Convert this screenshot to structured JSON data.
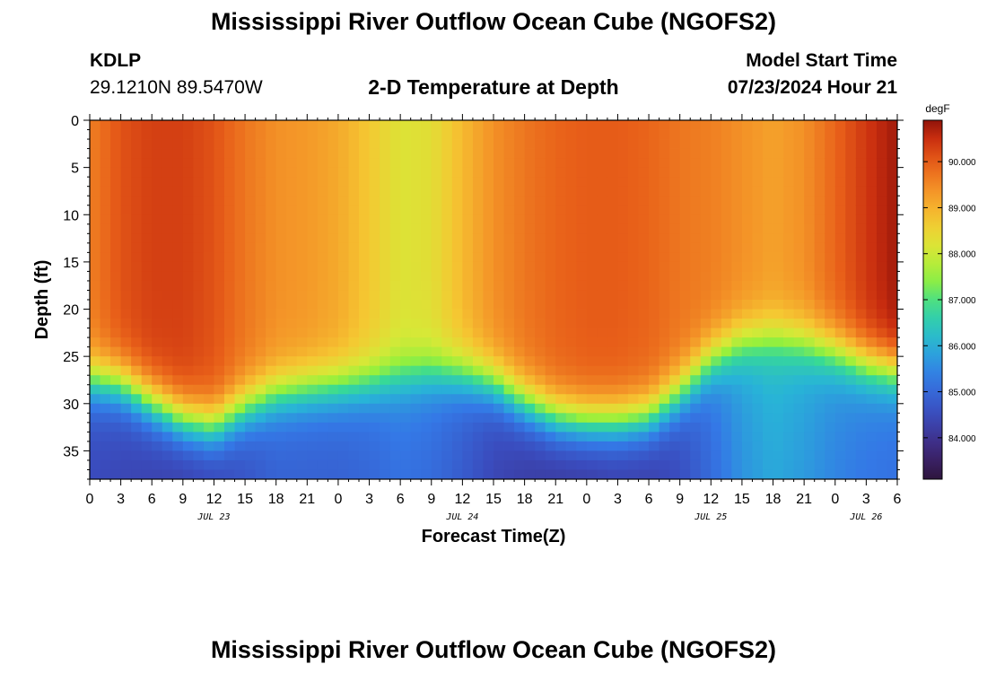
{
  "page": {
    "title_top": "Mississippi River Outflow Ocean Cube (NGOFS2)",
    "title_bottom": "Mississippi River Outflow Ocean Cube (NGOFS2)",
    "station_id": "KDLP",
    "station_coords": "29.1210N  89.5470W",
    "model_start_label": "Model Start Time",
    "model_start_value": "07/23/2024 Hour 21"
  },
  "chart_data": {
    "type": "heatmap",
    "title": "2-D Temperature at Depth",
    "xlabel": "Forecast Time(Z)",
    "ylabel": "Depth (ft)",
    "x_unit": "hours from 07/23/2024 00Z",
    "xlim": [
      0,
      78
    ],
    "ylim": [
      0,
      38
    ],
    "x_ticks": [
      0,
      3,
      6,
      9,
      12,
      15,
      18,
      21,
      24,
      27,
      30,
      33,
      36,
      39,
      42,
      45,
      48,
      51,
      54,
      57,
      60,
      63,
      66,
      69,
      72,
      75,
      78
    ],
    "x_tick_labels": [
      "0",
      "3",
      "6",
      "9",
      "12",
      "15",
      "18",
      "21",
      "0",
      "3",
      "6",
      "9",
      "12",
      "15",
      "18",
      "21",
      "0",
      "3",
      "6",
      "9",
      "12",
      "15",
      "18",
      "21",
      "0",
      "3",
      "6"
    ],
    "y_ticks": [
      0,
      5,
      10,
      15,
      20,
      25,
      30,
      35
    ],
    "y_tick_labels": [
      "0",
      "5",
      "10",
      "15",
      "20",
      "25",
      "30",
      "35"
    ],
    "date_labels": [
      {
        "text": "JUL 23",
        "x": 12
      },
      {
        "text": "JUL 24",
        "x": 36
      },
      {
        "text": "JUL 25",
        "x": 60
      },
      {
        "text": "JUL 26",
        "x": 75
      }
    ],
    "colorbar": {
      "unit": "degF",
      "min": 83.1,
      "max": 90.9,
      "ticks": [
        84.0,
        85.0,
        86.0,
        87.0,
        88.0,
        89.0,
        90.0
      ],
      "tick_labels": [
        "84.000",
        "85.000",
        "86.000",
        "87.000",
        "88.000",
        "89.000",
        "90.000"
      ]
    },
    "surface_temperature_degF": {
      "x": [
        0,
        3,
        6,
        9,
        12,
        15,
        18,
        21,
        24,
        27,
        30,
        33,
        36,
        39,
        42,
        45,
        48,
        51,
        54,
        57,
        60,
        63,
        66,
        69,
        72,
        75,
        78
      ],
      "values": [
        89.6,
        90.1,
        90.3,
        90.3,
        90.1,
        89.7,
        89.4,
        89.3,
        89.1,
        88.7,
        88.2,
        88.3,
        88.9,
        89.4,
        89.7,
        89.9,
        90.0,
        90.0,
        89.9,
        89.7,
        89.6,
        89.4,
        89.2,
        89.4,
        89.9,
        90.4,
        90.8
      ]
    },
    "deep_temperature_degF": {
      "x": [
        0,
        3,
        6,
        9,
        12,
        15,
        18,
        21,
        24,
        27,
        30,
        33,
        36,
        39,
        42,
        45,
        48,
        51,
        54,
        57,
        60,
        63,
        66,
        69,
        72,
        75,
        78
      ],
      "values": [
        84.6,
        84.5,
        84.4,
        84.3,
        84.4,
        84.7,
        85.0,
        85.0,
        85.0,
        85.1,
        85.3,
        85.2,
        84.9,
        84.5,
        84.3,
        84.2,
        84.2,
        84.3,
        84.3,
        84.6,
        85.2,
        85.8,
        86.1,
        85.9,
        85.6,
        85.4,
        85.3
      ]
    },
    "thermocline_depth_ft": {
      "x": [
        0,
        3,
        6,
        9,
        12,
        15,
        18,
        21,
        24,
        27,
        30,
        33,
        36,
        39,
        42,
        45,
        48,
        51,
        54,
        57,
        60,
        63,
        66,
        69,
        72,
        75,
        78
      ],
      "values": [
        27.5,
        28.0,
        30.0,
        31.8,
        32.5,
        30.5,
        29.0,
        28.5,
        28.2,
        27.8,
        27.2,
        26.8,
        27.0,
        28.0,
        30.0,
        31.5,
        32.0,
        32.0,
        31.5,
        29.0,
        25.5,
        23.5,
        23.0,
        23.5,
        24.5,
        25.8,
        26.5
      ]
    }
  }
}
